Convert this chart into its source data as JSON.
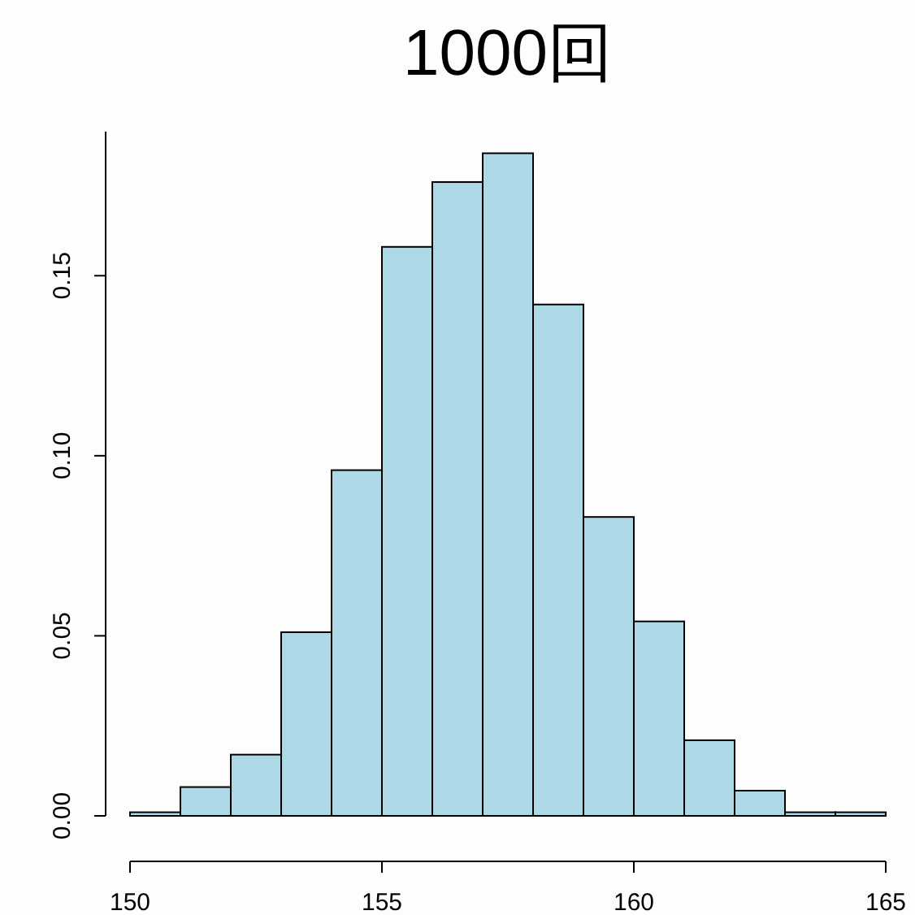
{
  "chart_data": {
    "type": "histogram",
    "title": "1000回",
    "bins": [
      150,
      151,
      152,
      153,
      154,
      155,
      156,
      157,
      158,
      159,
      160,
      161,
      162,
      163,
      164,
      165
    ],
    "values": [
      0.001,
      0.008,
      0.017,
      0.051,
      0.096,
      0.158,
      0.176,
      0.184,
      0.142,
      0.083,
      0.054,
      0.021,
      0.007,
      0.001,
      0.001
    ],
    "color": "#add8e6",
    "xlim": [
      150,
      165
    ],
    "xticks": [
      150,
      155,
      160,
      165
    ],
    "ylim": [
      0,
      0.19
    ],
    "yticks": [
      {
        "value": 0,
        "label": "0.00"
      },
      {
        "value": 0.05,
        "label": "0.05"
      },
      {
        "value": 0.1,
        "label": "0.10"
      },
      {
        "value": 0.15,
        "label": "0.15"
      }
    ],
    "grid": false
  }
}
